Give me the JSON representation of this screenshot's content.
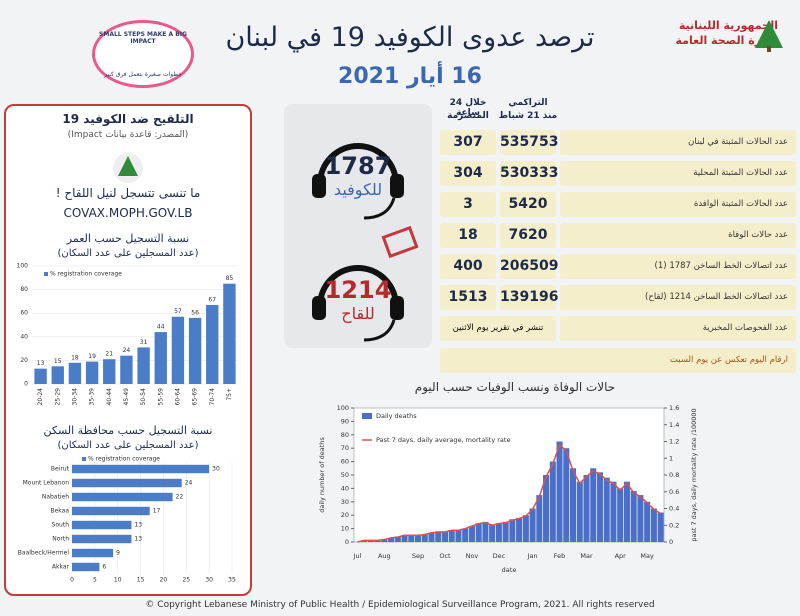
{
  "header": {
    "title": "ترصد عدوى الكوفيد 19 في لبنان",
    "date": "16 أيار 2021",
    "ministry": [
      "الجمهورية اللبنانية",
      "وزارة الصحة العامة"
    ],
    "campaign": [
      "SMALL STEPS MAKE A BIG IMPACT",
      "خطوات صغيرة بتعمل فرق كبير"
    ]
  },
  "vaccine_panel": {
    "title": "التلقيح ضد الكوفيد 19",
    "source": "(المصدر: قاعدة بيانات Impact)",
    "reminder": "ما تنسى تتسجل لنيل اللقاح !",
    "url": "COVAX.MOPH.GOV.LB",
    "age_chart": {
      "type": "bar",
      "title": "نسبة التسجيل حسب العمر",
      "subtitle": "(عدد المسجلين على عدد السكان)",
      "legend": "% registration coverage",
      "color": "#4a7cc7",
      "categories": [
        "20-24",
        "25-29",
        "30-34",
        "35-39",
        "40-44",
        "45-49",
        "50-54",
        "55-59",
        "60-64",
        "65-69",
        "70-74",
        "75+"
      ],
      "values": [
        13,
        15,
        18,
        19,
        21,
        24,
        31,
        44,
        57,
        56,
        67,
        85
      ],
      "ylim": [
        0,
        100
      ],
      "yticks": [
        0,
        20,
        40,
        60,
        80,
        100
      ]
    },
    "governorate_chart": {
      "type": "hbar",
      "title": "نسبة التسجيل حسب محافظة السكن",
      "subtitle": "(عدد المسجلين على عدد السكان)",
      "legend": "% registration coverage",
      "color": "#4a7cc7",
      "categories": [
        "Beirut",
        "Mount Lebanon",
        "Nabatieh",
        "Bekaa",
        "South",
        "North",
        "Baalbeck/Hermel",
        "Akkar"
      ],
      "values": [
        30,
        24,
        22,
        17,
        13,
        13,
        9,
        6
      ],
      "xlim": [
        0,
        35
      ],
      "xticks": [
        0,
        5,
        10,
        15,
        20,
        25,
        30,
        35
      ]
    }
  },
  "hotlines": [
    {
      "number": "1787",
      "label": "للكوفيد"
    },
    {
      "number": "1214",
      "label": "للقاح"
    }
  ],
  "table": {
    "headers": [
      "خلال 24 ساعة",
      "التراكمي"
    ],
    "subheaders": [
      "المنصرمة",
      "منذ 21 شباط"
    ],
    "rows": [
      {
        "label": "عدد الحالات المثبتة في لبنان",
        "last24": 307,
        "cumulative": 535753
      },
      {
        "label": "عدد الحالات المثبتة المحلية",
        "last24": 304,
        "cumulative": 530333
      },
      {
        "label": "عدد الحالات المثبتة الوافدة",
        "last24": 3,
        "cumulative": 5420
      },
      {
        "label": "عدد حالات الوفاة",
        "last24": 18,
        "cumulative": 7620
      },
      {
        "label": "عدد اتصالات الخط الساخن 1787 (1)",
        "last24": 400,
        "cumulative": 206509
      },
      {
        "label": "عدد اتصالات الخط الساخن 1214 (لقاح)",
        "last24": 1513,
        "cumulative": 139196
      }
    ],
    "tests": {
      "label": "عدد الفحوصات المخبرية",
      "note": "تنشر في تقرير يوم الاثنين"
    },
    "footnote": "ارقام اليوم تعكس عن يوم السبت"
  },
  "deaths_chart": {
    "type": "bar-line",
    "title": "حالات الوفاة ونسب الوفيات حسب اليوم",
    "ylabel": "daily number of deaths",
    "y2label": "past 7 days, daily mortality rate /100000",
    "xlabel": "date",
    "categories": [
      "Jul",
      null,
      null,
      null,
      "Aug",
      null,
      null,
      null,
      null,
      "Sep",
      null,
      null,
      null,
      "Oct",
      null,
      null,
      null,
      "Nov",
      null,
      null,
      null,
      "Dec",
      null,
      null,
      null,
      null,
      "Jan",
      null,
      null,
      null,
      "Feb",
      null,
      null,
      null,
      "Mar",
      null,
      null,
      null,
      null,
      "Apr",
      null,
      null,
      null,
      "May",
      null,
      null
    ],
    "series": [
      {
        "name": "Daily deaths",
        "color": "#4a6fc9",
        "values": [
          0,
          1,
          1,
          1,
          2,
          3,
          4,
          5,
          5,
          5,
          6,
          7,
          8,
          8,
          9,
          9,
          10,
          12,
          14,
          15,
          13,
          14,
          15,
          17,
          18,
          20,
          25,
          35,
          50,
          60,
          75,
          70,
          55,
          45,
          50,
          55,
          52,
          48,
          45,
          40,
          45,
          38,
          35,
          30,
          25,
          22
        ]
      },
      {
        "name": "Past 7 days, daily average, mortality rate",
        "color": "#d9534f",
        "axis": "y2",
        "values": [
          0,
          0.02,
          0.02,
          0.02,
          0.03,
          0.05,
          0.06,
          0.08,
          0.08,
          0.08,
          0.09,
          0.11,
          0.12,
          0.12,
          0.14,
          0.14,
          0.16,
          0.19,
          0.22,
          0.23,
          0.2,
          0.22,
          0.23,
          0.26,
          0.28,
          0.31,
          0.39,
          0.54,
          0.78,
          0.93,
          1.16,
          1.09,
          0.85,
          0.7,
          0.78,
          0.85,
          0.81,
          0.74,
          0.7,
          0.62,
          0.7,
          0.59,
          0.54,
          0.47,
          0.39,
          0.34
        ]
      }
    ],
    "ylim": [
      0,
      100
    ],
    "yticks": [
      0,
      10,
      20,
      30,
      40,
      50,
      60,
      70,
      80,
      90,
      100
    ],
    "y2lim": [
      0,
      1.6
    ],
    "y2ticks": [
      0,
      0.2,
      0.4,
      0.6,
      0.8,
      1,
      1.2,
      1.4,
      1.6
    ]
  },
  "footer": "© Copyright Lebanese Ministry of Public Health / Epidemiological Surveillance Program, 2021. All rights reserved"
}
